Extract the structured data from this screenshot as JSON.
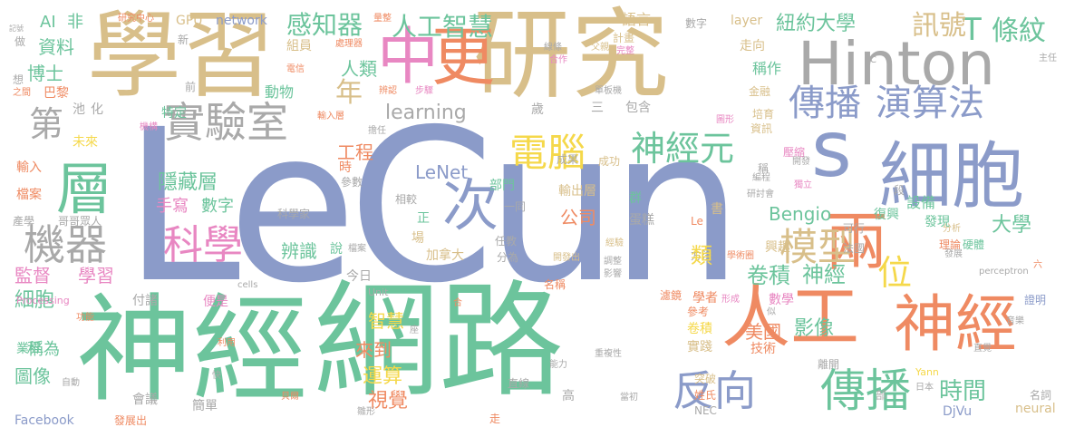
{
  "palette": {
    "blue": "#8b9bc9",
    "green": "#6cc49c",
    "tan": "#d8bf8a",
    "orange": "#ef8a62",
    "pink": "#e887c2",
    "gray": "#a9a9a9",
    "yellow": "#f5d84a",
    "lime": "#a6d64f"
  },
  "words": [
    {
      "text": "LeCun",
      "color": "blue"
    },
    {
      "text": "神經",
      "color": "green"
    },
    {
      "text": "網路",
      "color": "green"
    },
    {
      "text": "學習",
      "color": "tan"
    },
    {
      "text": "研究",
      "color": "tan"
    },
    {
      "text": "Hinton",
      "color": "gray"
    },
    {
      "text": "中",
      "color": "pink"
    },
    {
      "text": "更",
      "color": "orange"
    },
    {
      "text": "人工",
      "color": "orange"
    },
    {
      "text": "神經",
      "color": "orange"
    },
    {
      "text": "細胞",
      "color": "blue"
    },
    {
      "text": "s",
      "color": "blue"
    },
    {
      "text": "層",
      "color": "green"
    },
    {
      "text": "兩",
      "color": "orange"
    },
    {
      "text": "次",
      "color": "blue"
    },
    {
      "text": "實驗室",
      "color": "gray"
    },
    {
      "text": "傳播",
      "color": "blue"
    },
    {
      "text": "演算法",
      "color": "blue"
    },
    {
      "text": "反向",
      "color": "blue"
    },
    {
      "text": "傳播",
      "color": "green"
    },
    {
      "text": "電腦",
      "color": "yellow"
    },
    {
      "text": "神經元",
      "color": "green"
    },
    {
      "text": "機器",
      "color": "gray"
    },
    {
      "text": "科學",
      "color": "pink"
    },
    {
      "text": "模型",
      "color": "tan"
    },
    {
      "text": "位",
      "color": "yellow"
    },
    {
      "text": "感知器",
      "color": "green"
    },
    {
      "text": "人工智慧",
      "color": "green"
    },
    {
      "text": "T",
      "color": "green"
    },
    {
      "text": "條紋",
      "color": "green"
    },
    {
      "text": "訊號",
      "color": "tan"
    },
    {
      "text": "紐約大學",
      "color": "green"
    },
    {
      "text": "第",
      "color": "gray"
    },
    {
      "text": "年",
      "color": "tan"
    },
    {
      "text": "人類",
      "color": "green"
    },
    {
      "text": "監督",
      "color": "pink"
    },
    {
      "text": "學習",
      "color": "pink"
    },
    {
      "text": "細胞",
      "color": "green"
    },
    {
      "text": "卷積",
      "color": "green"
    },
    {
      "text": "神經",
      "color": "green"
    },
    {
      "text": "時間",
      "color": "green"
    },
    {
      "text": "隱藏層",
      "color": "green"
    },
    {
      "text": "公司",
      "color": "orange"
    },
    {
      "text": "Bengio",
      "color": "green"
    },
    {
      "text": "大學",
      "color": "green"
    },
    {
      "text": "learning",
      "color": "gray"
    },
    {
      "text": "LeNet",
      "color": "blue"
    },
    {
      "text": "影像",
      "color": "green"
    },
    {
      "text": "美國",
      "color": "orange"
    },
    {
      "text": "工程",
      "color": "orange"
    },
    {
      "text": "手寫",
      "color": "pink"
    },
    {
      "text": "數字",
      "color": "green"
    },
    {
      "text": "辨識",
      "color": "green"
    },
    {
      "text": "運算",
      "color": "yellow"
    },
    {
      "text": "視覺",
      "color": "orange"
    },
    {
      "text": "來到",
      "color": "orange"
    },
    {
      "text": "智慧",
      "color": "yellow"
    },
    {
      "text": "圖像",
      "color": "green"
    },
    {
      "text": "稱為",
      "color": "green"
    },
    {
      "text": "資料",
      "color": "green"
    },
    {
      "text": "博士",
      "color": "green"
    },
    {
      "text": "AI",
      "color": "green"
    },
    {
      "text": "非",
      "color": "green"
    },
    {
      "text": "GPU",
      "color": "tan"
    },
    {
      "text": "network",
      "color": "blue"
    },
    {
      "text": "Facebook",
      "color": "blue"
    },
    {
      "text": "DjVu",
      "color": "blue"
    },
    {
      "text": "neural",
      "color": "tan"
    },
    {
      "text": "cells",
      "color": "gray"
    },
    {
      "text": "perceptron",
      "color": "gray"
    },
    {
      "text": "Processing",
      "color": "pink"
    },
    {
      "text": "Yann",
      "color": "yellow"
    },
    {
      "text": "Unit",
      "color": "gray"
    },
    {
      "text": "layer",
      "color": "tan"
    },
    {
      "text": "巴黎",
      "color": "orange"
    },
    {
      "text": "未來",
      "color": "yellow"
    },
    {
      "text": "輸入",
      "color": "orange"
    },
    {
      "text": "檔案",
      "color": "orange"
    },
    {
      "text": "動物",
      "color": "green"
    },
    {
      "text": "稱作",
      "color": "green"
    },
    {
      "text": "組員",
      "color": "tan"
    },
    {
      "text": "語言",
      "color": "tan"
    },
    {
      "text": "走向",
      "color": "tan"
    },
    {
      "text": "設備",
      "color": "green"
    },
    {
      "text": "發現",
      "color": "green"
    },
    {
      "text": "興趣",
      "color": "tan"
    },
    {
      "text": "復興",
      "color": "green"
    },
    {
      "text": "卷積",
      "color": "yellow"
    },
    {
      "text": "實踐",
      "color": "tan"
    },
    {
      "text": "技術",
      "color": "orange"
    },
    {
      "text": "學者",
      "color": "orange"
    },
    {
      "text": "數學",
      "color": "pink"
    },
    {
      "text": "輸出層",
      "color": "tan"
    },
    {
      "text": "部門",
      "color": "green"
    },
    {
      "text": "方法",
      "color": "gray"
    },
    {
      "text": "突破",
      "color": "tan"
    },
    {
      "text": "姓氏",
      "color": "orange"
    },
    {
      "text": "會議",
      "color": "gray"
    },
    {
      "text": "特定",
      "color": "green"
    },
    {
      "text": "正",
      "color": "green"
    },
    {
      "text": "說",
      "color": "green"
    },
    {
      "text": "場",
      "color": "tan"
    },
    {
      "text": "蛋糕",
      "color": "gray"
    },
    {
      "text": "類",
      "color": "yellow"
    },
    {
      "text": "群",
      "color": "green"
    },
    {
      "text": "書",
      "color": "tan"
    },
    {
      "text": "化",
      "color": "gray"
    },
    {
      "text": "池",
      "color": "gray"
    },
    {
      "text": "金融",
      "color": "tan"
    },
    {
      "text": "培育",
      "color": "tan"
    },
    {
      "text": "資訊",
      "color": "tan"
    },
    {
      "text": "壓縮",
      "color": "pink"
    },
    {
      "text": "稱",
      "color": "gray"
    },
    {
      "text": "包含",
      "color": "gray"
    },
    {
      "text": "三",
      "color": "gray"
    },
    {
      "text": "歲",
      "color": "gray"
    },
    {
      "text": "離開",
      "color": "gray"
    },
    {
      "text": "直線",
      "color": "gray"
    },
    {
      "text": "高",
      "color": "gray"
    },
    {
      "text": "今日",
      "color": "gray"
    },
    {
      "text": "便是",
      "color": "pink"
    },
    {
      "text": "付諸",
      "color": "gray"
    },
    {
      "text": "簡單",
      "color": "gray"
    },
    {
      "text": "發展出",
      "color": "orange"
    },
    {
      "text": "業界",
      "color": "green"
    },
    {
      "text": "產學",
      "color": "gray"
    },
    {
      "text": "哥哥",
      "color": "gray"
    },
    {
      "text": "眾人",
      "color": "gray"
    },
    {
      "text": "科學家",
      "color": "gray"
    },
    {
      "text": "加拿大",
      "color": "tan"
    },
    {
      "text": "名稱",
      "color": "orange"
    },
    {
      "text": "參考",
      "color": "orange"
    },
    {
      "text": "證明",
      "color": "blue"
    },
    {
      "text": "名詞",
      "color": "gray"
    },
    {
      "text": "分為",
      "color": "gray"
    },
    {
      "text": "任教",
      "color": "gray"
    },
    {
      "text": "相較",
      "color": "gray"
    },
    {
      "text": "參數",
      "color": "gray"
    },
    {
      "text": "成果",
      "color": "gray"
    },
    {
      "text": "成功",
      "color": "tan"
    },
    {
      "text": "時",
      "color": "orange"
    },
    {
      "text": "前",
      "color": "gray"
    },
    {
      "text": "可行",
      "color": "gray"
    },
    {
      "text": "理論",
      "color": "orange"
    },
    {
      "text": "硬體",
      "color": "green"
    },
    {
      "text": "段",
      "color": "gray"
    },
    {
      "text": "法國",
      "color": "gray"
    },
    {
      "text": "計畫",
      "color": "tan"
    },
    {
      "text": "數字",
      "color": "gray"
    },
    {
      "text": "新",
      "color": "gray"
    },
    {
      "text": "想",
      "color": "gray"
    },
    {
      "text": "做",
      "color": "gray"
    },
    {
      "text": "研究中心",
      "color": "orange"
    },
    {
      "text": "處理器",
      "color": "orange"
    },
    {
      "text": "電信",
      "color": "orange"
    },
    {
      "text": "線條",
      "color": "gray"
    },
    {
      "text": "合作",
      "color": "pink"
    },
    {
      "text": "父親",
      "color": "tan"
    },
    {
      "text": "完整",
      "color": "pink"
    },
    {
      "text": "輸入層",
      "color": "orange"
    },
    {
      "text": "辨認",
      "color": "orange"
    },
    {
      "text": "步驟",
      "color": "pink"
    },
    {
      "text": "擔任",
      "color": "gray"
    },
    {
      "text": "單板機",
      "color": "gray"
    },
    {
      "text": "圖形",
      "color": "pink"
    },
    {
      "text": "研討會",
      "color": "gray"
    },
    {
      "text": "獨立",
      "color": "pink"
    },
    {
      "text": "編程",
      "color": "gray"
    },
    {
      "text": "開發",
      "color": "gray"
    },
    {
      "text": "Le",
      "color": "orange"
    },
    {
      "text": "分析",
      "color": "tan"
    },
    {
      "text": "學術圈",
      "color": "orange"
    },
    {
      "text": "發展",
      "color": "gray"
    },
    {
      "text": "經驗",
      "color": "tan"
    },
    {
      "text": "開發出",
      "color": "tan"
    },
    {
      "text": "調整",
      "color": "gray"
    },
    {
      "text": "影響",
      "color": "gray"
    },
    {
      "text": "檔案",
      "color": "gray"
    },
    {
      "text": "形成",
      "color": "pink"
    },
    {
      "text": "濾鏡",
      "color": "orange"
    },
    {
      "text": "音樂",
      "color": "gray"
    },
    {
      "text": "似",
      "color": "gray"
    },
    {
      "text": "直覺",
      "color": "gray"
    },
    {
      "text": "日本",
      "color": "gray"
    },
    {
      "text": "部",
      "color": "gray"
    },
    {
      "text": "NEC",
      "color": "gray"
    },
    {
      "text": "當初",
      "color": "gray"
    },
    {
      "text": "能力",
      "color": "gray"
    },
    {
      "text": "重複性",
      "color": "gray"
    },
    {
      "text": "雛形",
      "color": "gray"
    },
    {
      "text": "貝爾",
      "color": "orange"
    },
    {
      "text": "快",
      "color": "gray"
    },
    {
      "text": "利用",
      "color": "orange"
    },
    {
      "text": "自動",
      "color": "gray"
    },
    {
      "text": "功能",
      "color": "orange"
    },
    {
      "text": "記號",
      "color": "gray"
    },
    {
      "text": "之間",
      "color": "orange"
    },
    {
      "text": "機構",
      "color": "pink"
    },
    {
      "text": "主任",
      "color": "gray"
    },
    {
      "text": "六",
      "color": "orange"
    },
    {
      "text": "C",
      "color": "gray"
    },
    {
      "text": "走",
      "color": "orange"
    },
    {
      "text": "座",
      "color": "gray"
    },
    {
      "text": "合",
      "color": "orange"
    },
    {
      "text": "一同",
      "color": "gray"
    },
    {
      "text": "量整",
      "color": "orange"
    }
  ]
}
